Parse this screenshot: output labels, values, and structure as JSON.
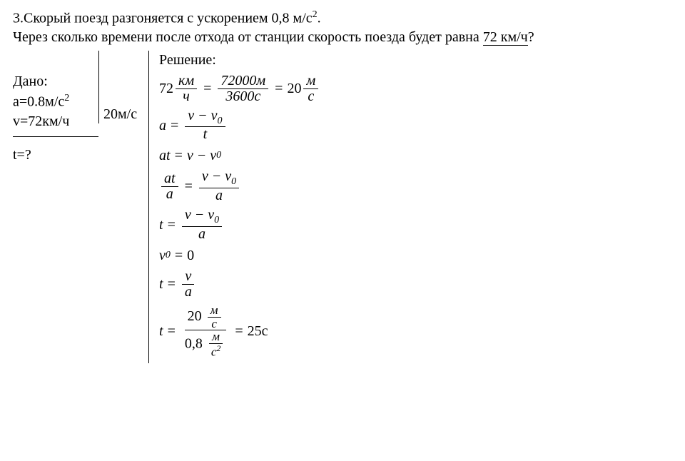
{
  "problem": {
    "number": "3.",
    "line1": "Скорый поезд разгоняется с ускорением 0,8 м/с",
    "sup1": "2",
    "period": ".",
    "line2a": "Через сколько времени после отхода от станции скорость поезда будет равна ",
    "speed_underlined": "72 км/ч",
    "q": "?"
  },
  "given": {
    "label": "Дано:",
    "a_line": "а=0.8м/с",
    "a_sup": "2",
    "v_line": "v=72км/ч",
    "find": "t=?"
  },
  "si": {
    "value": "20м/с"
  },
  "solution": {
    "label": "Решение:",
    "l1": {
      "p1": "72",
      "u1n": "км",
      "u1d": "ч",
      "eq1": "=",
      "p2n": "72000м",
      "p2d": "3600с",
      "eq2": "=",
      "p3": "20",
      "u3n": "м",
      "u3d": "с"
    },
    "l2": {
      "lhs": "a",
      "eq": "=",
      "num": "v − v",
      "sub0": "0",
      "den": "t"
    },
    "l3": {
      "lhs": "at",
      "eq": "=",
      "rhs": "v − v",
      "sub0": "0"
    },
    "l4": {
      "ln": "at",
      "ld": "a",
      "eq": "=",
      "rn": "v − v",
      "sub0": "0",
      "rd": "a"
    },
    "l5": {
      "lhs": "t",
      "eq": "=",
      "num": "v − v",
      "sub0": "0",
      "den": "a"
    },
    "l6": {
      "lhs": "v",
      "sub0": "0",
      "eq": "=",
      "rhs": "0"
    },
    "l7": {
      "lhs": "t",
      "eq": "=",
      "num": "v",
      "den": "a"
    },
    "l8": {
      "lhs": "t",
      "eq": "=",
      "n_val": "20",
      "n_un": "м",
      "n_ud": "с",
      "d_val": "0,8",
      "d_un": "м",
      "d_ud": "с",
      "d_sup": "2",
      "eq2": "=",
      "ans": "25с"
    }
  },
  "colors": {
    "text": "#000000",
    "bg": "#ffffff"
  }
}
